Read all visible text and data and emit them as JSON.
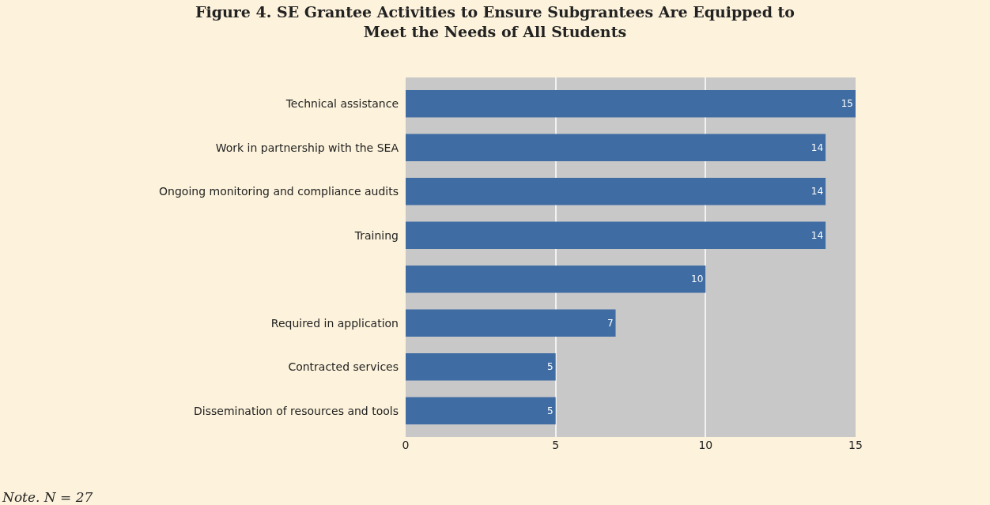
{
  "chart_data": {
    "type": "bar",
    "orientation": "horizontal",
    "title": "Figure 4. SE Grantee Activities to Ensure Subgrantees Are Equipped to\nMeet the Needs of All Students",
    "categories": [
      "Technical assistance",
      "Work in partnership with the SEA",
      "Ongoing monitoring and compliance audits",
      "Training",
      null,
      "Required in application",
      "Contracted services",
      "Dissemination of resources and tools"
    ],
    "values": [
      15,
      14,
      14,
      14,
      10,
      7,
      5,
      5
    ],
    "color": "#3f6ca3",
    "xlim": [
      0,
      15
    ],
    "xticks": [
      0,
      5,
      10,
      15
    ],
    "grid": "x",
    "data_labels": true,
    "annotations": [
      "Note. N = 27"
    ]
  }
}
